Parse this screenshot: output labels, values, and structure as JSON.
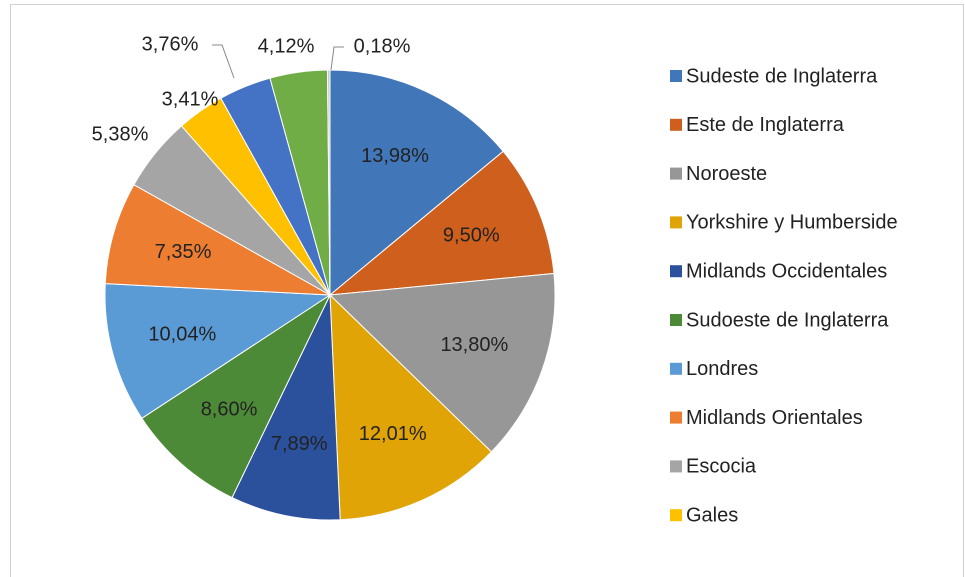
{
  "chart_data": {
    "type": "pie",
    "categories": [
      "Sudeste de Inglaterra",
      "Este de Inglaterra",
      "Noroeste",
      "Yorkshire y Humberside",
      "Midlands Occidentales",
      "Sudoeste de Inglaterra",
      "Londres",
      "Midlands Orientales",
      "Escocia",
      "Gales",
      null,
      null,
      null
    ],
    "values": [
      13.98,
      9.5,
      13.8,
      12.01,
      7.89,
      8.6,
      10.04,
      7.35,
      5.38,
      3.41,
      3.76,
      4.12,
      0.18
    ],
    "value_labels": [
      "13,98%",
      "9,50%",
      "13,80%",
      "12,01%",
      "7,89%",
      "8,60%",
      "10,04%",
      "7,35%",
      "5,38%",
      "3,41%",
      "3,76%",
      "4,12%",
      "0,18%"
    ],
    "colors": [
      "#4176b8",
      "#cf5f1c",
      "#979797",
      "#e0a406",
      "#2b519c",
      "#4d8a37",
      "#5b9bd5",
      "#ed7d31",
      "#a5a5a5",
      "#ffc000",
      "#4472c4",
      "#70ad47",
      "#c8c8c8"
    ],
    "legend": "right"
  }
}
